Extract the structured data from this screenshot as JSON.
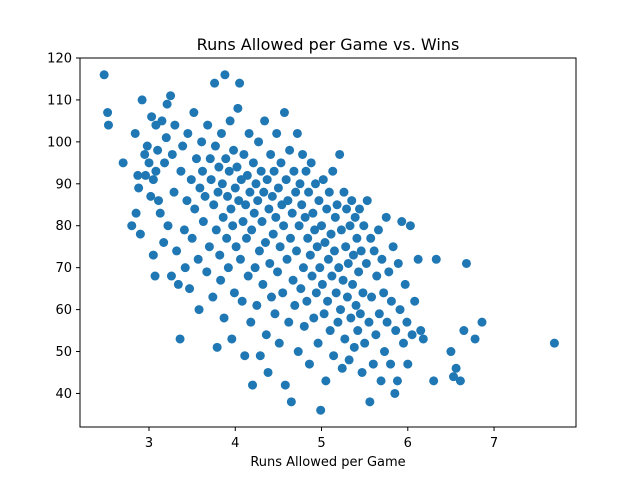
{
  "chart_data": {
    "type": "scatter",
    "title": "Runs Allowed per Game vs. Wins",
    "xlabel": "Runs Allowed per Game",
    "ylabel": "",
    "xlim": [
      2.2,
      7.95
    ],
    "ylim": [
      32,
      120
    ],
    "xticks": [
      "3",
      "4",
      "5",
      "6",
      "7"
    ],
    "yticks": [
      "40",
      "50",
      "60",
      "70",
      "80",
      "90",
      "100",
      "110",
      "120"
    ],
    "grid": false,
    "legend": "none",
    "marker_color": "#1f77b4",
    "series": [
      {
        "points": [
          [
            2.48,
            116
          ],
          [
            2.52,
            107
          ],
          [
            2.53,
            104
          ],
          [
            2.7,
            95
          ],
          [
            2.8,
            80
          ],
          [
            2.84,
            102
          ],
          [
            2.85,
            83
          ],
          [
            2.87,
            92
          ],
          [
            2.88,
            89
          ],
          [
            2.9,
            78
          ],
          [
            2.92,
            110
          ],
          [
            2.95,
            97
          ],
          [
            2.96,
            92
          ],
          [
            2.98,
            99
          ],
          [
            3.0,
            95
          ],
          [
            3.02,
            87
          ],
          [
            3.03,
            106
          ],
          [
            3.05,
            91
          ],
          [
            3.05,
            73
          ],
          [
            3.07,
            68
          ],
          [
            3.08,
            104
          ],
          [
            3.08,
            93
          ],
          [
            3.1,
            98
          ],
          [
            3.11,
            86
          ],
          [
            3.13,
            83
          ],
          [
            3.15,
            105
          ],
          [
            3.17,
            76
          ],
          [
            3.18,
            95
          ],
          [
            3.2,
            101
          ],
          [
            3.21,
            109
          ],
          [
            3.22,
            80
          ],
          [
            3.25,
            111
          ],
          [
            3.26,
            68
          ],
          [
            3.27,
            97
          ],
          [
            3.29,
            88
          ],
          [
            3.3,
            104
          ],
          [
            3.32,
            74
          ],
          [
            3.34,
            66
          ],
          [
            3.36,
            53
          ],
          [
            3.37,
            93
          ],
          [
            3.39,
            99
          ],
          [
            3.41,
            79
          ],
          [
            3.42,
            70
          ],
          [
            3.44,
            86
          ],
          [
            3.45,
            102
          ],
          [
            3.47,
            65
          ],
          [
            3.49,
            91
          ],
          [
            3.5,
            77
          ],
          [
            3.52,
            107
          ],
          [
            3.53,
            84
          ],
          [
            3.55,
            96
          ],
          [
            3.57,
            72
          ],
          [
            3.58,
            60
          ],
          [
            3.59,
            89
          ],
          [
            3.61,
            100
          ],
          [
            3.62,
            93
          ],
          [
            3.63,
            81
          ],
          [
            3.65,
            87
          ],
          [
            3.67,
            69
          ],
          [
            3.68,
            104
          ],
          [
            3.7,
            75
          ],
          [
            3.71,
            96
          ],
          [
            3.72,
            91
          ],
          [
            3.74,
            63
          ],
          [
            3.75,
            85
          ],
          [
            3.76,
            114
          ],
          [
            3.77,
            99
          ],
          [
            3.78,
            79
          ],
          [
            3.79,
            51
          ],
          [
            3.8,
            88
          ],
          [
            3.81,
            94
          ],
          [
            3.82,
            73
          ],
          [
            3.83,
            67
          ],
          [
            3.84,
            102
          ],
          [
            3.85,
            90
          ],
          [
            3.86,
            82
          ],
          [
            3.87,
            58
          ],
          [
            3.88,
            116
          ],
          [
            3.89,
            96
          ],
          [
            3.9,
            77
          ],
          [
            3.91,
            87
          ],
          [
            3.92,
            70
          ],
          [
            3.93,
            93
          ],
          [
            3.94,
            105
          ],
          [
            3.95,
            84
          ],
          [
            3.96,
            53
          ],
          [
            3.97,
            80
          ],
          [
            3.98,
            98
          ],
          [
            3.99,
            64
          ],
          [
            4.0,
            89
          ],
          [
            4.01,
            75
          ],
          [
            4.02,
            94
          ],
          [
            4.03,
            108
          ],
          [
            4.04,
            86
          ],
          [
            4.05,
            114
          ],
          [
            4.06,
            72
          ],
          [
            4.07,
            91
          ],
          [
            4.08,
            62
          ],
          [
            4.09,
            81
          ],
          [
            4.1,
            97
          ],
          [
            4.11,
            49
          ],
          [
            4.12,
            85
          ],
          [
            4.13,
            77
          ],
          [
            4.14,
            92
          ],
          [
            4.15,
            68
          ],
          [
            4.16,
            102
          ],
          [
            4.17,
            88
          ],
          [
            4.18,
            57
          ],
          [
            4.19,
            79
          ],
          [
            4.2,
            42
          ],
          [
            4.21,
            95
          ],
          [
            4.22,
            83
          ],
          [
            4.23,
            70
          ],
          [
            4.24,
            90
          ],
          [
            4.25,
            61
          ],
          [
            4.26,
            86
          ],
          [
            4.27,
            100
          ],
          [
            4.28,
            74
          ],
          [
            4.29,
            49
          ],
          [
            4.3,
            93
          ],
          [
            4.31,
            81
          ],
          [
            4.32,
            66
          ],
          [
            4.33,
            88
          ],
          [
            4.34,
            105
          ],
          [
            4.35,
            76
          ],
          [
            4.36,
            54
          ],
          [
            4.37,
            91
          ],
          [
            4.38,
            45
          ],
          [
            4.39,
            84
          ],
          [
            4.4,
            71
          ],
          [
            4.41,
            97
          ],
          [
            4.42,
            63
          ],
          [
            4.43,
            87
          ],
          [
            4.44,
            78
          ],
          [
            4.45,
            93
          ],
          [
            4.46,
            59
          ],
          [
            4.47,
            82
          ],
          [
            4.48,
            102
          ],
          [
            4.49,
            69
          ],
          [
            4.5,
            89
          ],
          [
            4.51,
            52
          ],
          [
            4.52,
            75
          ],
          [
            4.53,
            95
          ],
          [
            4.54,
            85
          ],
          [
            4.55,
            64
          ],
          [
            4.56,
            80
          ],
          [
            4.57,
            107
          ],
          [
            4.58,
            42
          ],
          [
            4.59,
            91
          ],
          [
            4.6,
            72
          ],
          [
            4.61,
            86
          ],
          [
            4.62,
            57
          ],
          [
            4.63,
            98
          ],
          [
            4.64,
            77
          ],
          [
            4.65,
            38
          ],
          [
            4.66,
            83
          ],
          [
            4.67,
            67
          ],
          [
            4.68,
            93
          ],
          [
            4.69,
            61
          ],
          [
            4.7,
            88
          ],
          [
            4.71,
            74
          ],
          [
            4.72,
            102
          ],
          [
            4.73,
            50
          ],
          [
            4.74,
            80
          ],
          [
            4.75,
            90
          ],
          [
            4.76,
            65
          ],
          [
            4.77,
            85
          ],
          [
            4.78,
            97
          ],
          [
            4.79,
            70
          ],
          [
            4.8,
            56
          ],
          [
            4.81,
            82
          ],
          [
            4.82,
            93
          ],
          [
            4.83,
            62
          ],
          [
            4.84,
            77
          ],
          [
            4.85,
            88
          ],
          [
            4.86,
            47
          ],
          [
            4.87,
            73
          ],
          [
            4.88,
            95
          ],
          [
            4.89,
            68
          ],
          [
            4.9,
            83
          ],
          [
            4.91,
            58
          ],
          [
            4.92,
            79
          ],
          [
            4.93,
            90
          ],
          [
            4.94,
            64
          ],
          [
            4.95,
            75
          ],
          [
            4.96,
            52
          ],
          [
            4.97,
            86
          ],
          [
            4.98,
            70
          ],
          [
            4.99,
            36
          ],
          [
            5.0,
            80
          ],
          [
            5.01,
            66
          ],
          [
            5.02,
            91
          ],
          [
            5.03,
            59
          ],
          [
            5.04,
            76
          ],
          [
            5.05,
            43
          ],
          [
            5.06,
            84
          ],
          [
            5.07,
            62
          ],
          [
            5.08,
            72
          ],
          [
            5.09,
            88
          ],
          [
            5.1,
            55
          ],
          [
            5.11,
            78
          ],
          [
            5.12,
            68
          ],
          [
            5.13,
            93
          ],
          [
            5.14,
            49
          ],
          [
            5.15,
            74
          ],
          [
            5.16,
            82
          ],
          [
            5.17,
            64
          ],
          [
            5.18,
            85
          ],
          [
            5.19,
            57
          ],
          [
            5.2,
            70
          ],
          [
            5.21,
            97
          ],
          [
            5.22,
            60
          ],
          [
            5.23,
            79
          ],
          [
            5.24,
            46
          ],
          [
            5.25,
            67
          ],
          [
            5.26,
            88
          ],
          [
            5.27,
            53
          ],
          [
            5.28,
            75
          ],
          [
            5.29,
            84
          ],
          [
            5.3,
            63
          ],
          [
            5.31,
            71
          ],
          [
            5.32,
            48
          ],
          [
            5.33,
            80
          ],
          [
            5.34,
            58
          ],
          [
            5.35,
            86
          ],
          [
            5.36,
            66
          ],
          [
            5.37,
            73
          ],
          [
            5.38,
            51
          ],
          [
            5.39,
            82
          ],
          [
            5.4,
            61
          ],
          [
            5.41,
            77
          ],
          [
            5.42,
            55
          ],
          [
            5.43,
            69
          ],
          [
            5.44,
            84
          ],
          [
            5.45,
            59
          ],
          [
            5.46,
            74
          ],
          [
            5.47,
            45
          ],
          [
            5.48,
            64
          ],
          [
            5.49,
            80
          ],
          [
            5.5,
            52
          ],
          [
            5.52,
            71
          ],
          [
            5.53,
            86
          ],
          [
            5.55,
            57
          ],
          [
            5.56,
            38
          ],
          [
            5.57,
            77
          ],
          [
            5.58,
            63
          ],
          [
            5.6,
            47
          ],
          [
            5.61,
            74
          ],
          [
            5.63,
            54
          ],
          [
            5.64,
            68
          ],
          [
            5.66,
            79
          ],
          [
            5.67,
            59
          ],
          [
            5.69,
            43
          ],
          [
            5.7,
            72
          ],
          [
            5.72,
            64
          ],
          [
            5.73,
            50
          ],
          [
            5.75,
            82
          ],
          [
            5.76,
            57
          ],
          [
            5.78,
            69
          ],
          [
            5.8,
            47
          ],
          [
            5.81,
            62
          ],
          [
            5.83,
            75
          ],
          [
            5.85,
            40
          ],
          [
            5.86,
            55
          ],
          [
            5.88,
            43
          ],
          [
            5.89,
            71
          ],
          [
            5.91,
            60
          ],
          [
            5.93,
            81
          ],
          [
            5.95,
            52
          ],
          [
            5.97,
            66
          ],
          [
            5.99,
            57
          ],
          [
            6.0,
            47
          ],
          [
            6.03,
            80
          ],
          [
            6.05,
            54
          ],
          [
            6.08,
            62
          ],
          [
            6.12,
            72
          ],
          [
            6.15,
            55
          ],
          [
            6.18,
            53
          ],
          [
            6.3,
            43
          ],
          [
            6.33,
            72
          ],
          [
            6.5,
            50
          ],
          [
            6.53,
            44
          ],
          [
            6.56,
            46
          ],
          [
            6.61,
            43
          ],
          [
            6.65,
            55
          ],
          [
            6.68,
            71
          ],
          [
            6.78,
            53
          ],
          [
            6.86,
            57
          ],
          [
            7.7,
            52
          ]
        ]
      }
    ]
  }
}
